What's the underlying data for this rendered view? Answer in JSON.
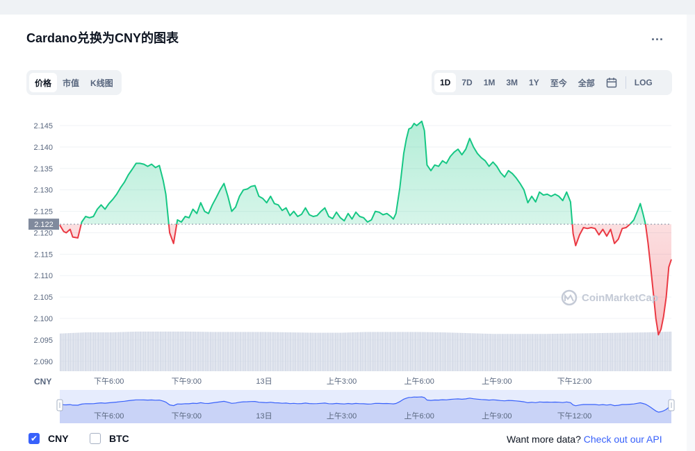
{
  "title": "Cardano兑换为CNY的图表",
  "more_label": "...",
  "tabs_left": [
    "价格",
    "市值",
    "K线图"
  ],
  "tabs_left_active": 0,
  "tabs_right": [
    "1D",
    "7D",
    "1M",
    "3M",
    "1Y",
    "至今",
    "全部"
  ],
  "tabs_right_active": 0,
  "calendar_icon": "calendar-icon",
  "log_label": "LOG",
  "legend": [
    {
      "label": "CNY",
      "checked": true
    },
    {
      "label": "BTC",
      "checked": false
    }
  ],
  "api_prompt": "Want more data?",
  "api_link": "Check out our API",
  "watermark": "CoinMarketCap",
  "colors": {
    "up": "#16c784",
    "down": "#ea3943",
    "accent": "#3861fb",
    "volume": "#cfd6e4",
    "navigator": "#3861fb"
  },
  "chart_data": {
    "type": "area",
    "currency_label": "CNY",
    "y_ticks": [
      "2.145",
      "2.140",
      "2.135",
      "2.130",
      "2.125",
      "2.120",
      "2.115",
      "2.110",
      "2.105",
      "2.100",
      "2.095",
      "2.090"
    ],
    "ylim": [
      2.0877,
      2.1484
    ],
    "baseline": 2.122,
    "baseline_label": "2.122",
    "x_tick_labels": [
      "下午6:00",
      "下午9:00",
      "13日",
      "上午3:00",
      "上午6:00",
      "上午9:00",
      "下午12:00"
    ],
    "x_range_hours": [
      0,
      23.65
    ],
    "x_tick_hours": [
      1.9,
      4.9,
      7.9,
      10.9,
      13.9,
      16.9,
      19.9
    ],
    "points": [
      [
        0.0,
        2.1218
      ],
      [
        0.15,
        2.1203
      ],
      [
        0.25,
        2.12
      ],
      [
        0.4,
        2.1208
      ],
      [
        0.5,
        2.119
      ],
      [
        0.7,
        2.1188
      ],
      [
        0.85,
        2.1225
      ],
      [
        1.0,
        2.1238
      ],
      [
        1.15,
        2.1235
      ],
      [
        1.3,
        2.1238
      ],
      [
        1.45,
        2.1255
      ],
      [
        1.6,
        2.1265
      ],
      [
        1.75,
        2.1255
      ],
      [
        1.9,
        2.1268
      ],
      [
        2.05,
        2.1278
      ],
      [
        2.2,
        2.129
      ],
      [
        2.35,
        2.1305
      ],
      [
        2.5,
        2.1318
      ],
      [
        2.65,
        2.1335
      ],
      [
        2.8,
        2.1348
      ],
      [
        2.95,
        2.1362
      ],
      [
        3.1,
        2.1362
      ],
      [
        3.25,
        2.136
      ],
      [
        3.4,
        2.1355
      ],
      [
        3.55,
        2.136
      ],
      [
        3.7,
        2.1352
      ],
      [
        3.85,
        2.1357
      ],
      [
        4.0,
        2.1322
      ],
      [
        4.1,
        2.129
      ],
      [
        4.25,
        2.12
      ],
      [
        4.4,
        2.1175
      ],
      [
        4.55,
        2.123
      ],
      [
        4.7,
        2.1225
      ],
      [
        4.85,
        2.1238
      ],
      [
        5.0,
        2.1235
      ],
      [
        5.15,
        2.1255
      ],
      [
        5.3,
        2.1245
      ],
      [
        5.45,
        2.127
      ],
      [
        5.6,
        2.125
      ],
      [
        5.75,
        2.1245
      ],
      [
        5.9,
        2.1265
      ],
      [
        6.05,
        2.1282
      ],
      [
        6.2,
        2.13
      ],
      [
        6.35,
        2.1315
      ],
      [
        6.5,
        2.1285
      ],
      [
        6.65,
        2.125
      ],
      [
        6.8,
        2.126
      ],
      [
        6.95,
        2.1285
      ],
      [
        7.1,
        2.13
      ],
      [
        7.25,
        2.1302
      ],
      [
        7.4,
        2.1308
      ],
      [
        7.55,
        2.131
      ],
      [
        7.7,
        2.1285
      ],
      [
        7.85,
        2.128
      ],
      [
        8.0,
        2.127
      ],
      [
        8.15,
        2.1285
      ],
      [
        8.3,
        2.1268
      ],
      [
        8.45,
        2.1265
      ],
      [
        8.6,
        2.1252
      ],
      [
        8.75,
        2.1258
      ],
      [
        8.9,
        2.124
      ],
      [
        9.05,
        2.125
      ],
      [
        9.2,
        2.1238
      ],
      [
        9.35,
        2.1243
      ],
      [
        9.5,
        2.1258
      ],
      [
        9.65,
        2.1242
      ],
      [
        9.8,
        2.1238
      ],
      [
        9.95,
        2.124
      ],
      [
        10.1,
        2.125
      ],
      [
        10.25,
        2.1258
      ],
      [
        10.4,
        2.1238
      ],
      [
        10.55,
        2.1233
      ],
      [
        10.7,
        2.1248
      ],
      [
        10.85,
        2.1235
      ],
      [
        11.0,
        2.1228
      ],
      [
        11.15,
        2.1245
      ],
      [
        11.3,
        2.1232
      ],
      [
        11.45,
        2.1248
      ],
      [
        11.6,
        2.1238
      ],
      [
        11.75,
        2.1235
      ],
      [
        11.9,
        2.1225
      ],
      [
        12.05,
        2.123
      ],
      [
        12.2,
        2.125
      ],
      [
        12.35,
        2.1248
      ],
      [
        12.5,
        2.1242
      ],
      [
        12.65,
        2.1245
      ],
      [
        12.8,
        2.1238
      ],
      [
        12.9,
        2.1232
      ],
      [
        13.0,
        2.1245
      ],
      [
        13.15,
        2.1305
      ],
      [
        13.3,
        2.1385
      ],
      [
        13.4,
        2.1418
      ],
      [
        13.5,
        2.1442
      ],
      [
        13.6,
        2.1445
      ],
      [
        13.7,
        2.1455
      ],
      [
        13.8,
        2.145
      ],
      [
        13.9,
        2.1455
      ],
      [
        14.0,
        2.146
      ],
      [
        14.1,
        2.1438
      ],
      [
        14.2,
        2.1358
      ],
      [
        14.35,
        2.1345
      ],
      [
        14.5,
        2.1358
      ],
      [
        14.65,
        2.1355
      ],
      [
        14.8,
        2.1368
      ],
      [
        14.95,
        2.1362
      ],
      [
        15.1,
        2.1378
      ],
      [
        15.25,
        2.1388
      ],
      [
        15.4,
        2.1395
      ],
      [
        15.55,
        2.1382
      ],
      [
        15.7,
        2.1395
      ],
      [
        15.85,
        2.142
      ],
      [
        16.0,
        2.14
      ],
      [
        16.15,
        2.1385
      ],
      [
        16.3,
        2.1375
      ],
      [
        16.45,
        2.1368
      ],
      [
        16.6,
        2.1355
      ],
      [
        16.75,
        2.1365
      ],
      [
        16.9,
        2.1355
      ],
      [
        17.05,
        2.134
      ],
      [
        17.2,
        2.133
      ],
      [
        17.35,
        2.1345
      ],
      [
        17.5,
        2.1338
      ],
      [
        17.65,
        2.1328
      ],
      [
        17.8,
        2.1315
      ],
      [
        17.95,
        2.13
      ],
      [
        18.1,
        2.127
      ],
      [
        18.25,
        2.1285
      ],
      [
        18.4,
        2.1272
      ],
      [
        18.55,
        2.1295
      ],
      [
        18.7,
        2.1288
      ],
      [
        18.85,
        2.129
      ],
      [
        19.0,
        2.1285
      ],
      [
        19.15,
        2.129
      ],
      [
        19.3,
        2.1285
      ],
      [
        19.45,
        2.1275
      ],
      [
        19.6,
        2.1295
      ],
      [
        19.75,
        2.1272
      ],
      [
        19.85,
        2.1198
      ],
      [
        19.95,
        2.117
      ],
      [
        20.1,
        2.1195
      ],
      [
        20.25,
        2.1212
      ],
      [
        20.4,
        2.121
      ],
      [
        20.55,
        2.1212
      ],
      [
        20.7,
        2.121
      ],
      [
        20.85,
        2.1195
      ],
      [
        21.0,
        2.1208
      ],
      [
        21.15,
        2.1192
      ],
      [
        21.3,
        2.1208
      ],
      [
        21.45,
        2.1175
      ],
      [
        21.6,
        2.1185
      ],
      [
        21.75,
        2.121
      ],
      [
        21.9,
        2.1212
      ],
      [
        22.05,
        2.122
      ],
      [
        22.2,
        2.123
      ],
      [
        22.35,
        2.1252
      ],
      [
        22.45,
        2.1268
      ],
      [
        22.55,
        2.1245
      ],
      [
        22.65,
        2.122
      ],
      [
        22.75,
        2.1175
      ],
      [
        22.85,
        2.112
      ],
      [
        22.95,
        2.106
      ],
      [
        23.05,
        2.1
      ],
      [
        23.15,
        2.0962
      ],
      [
        23.25,
        2.0975
      ],
      [
        23.35,
        2.1005
      ],
      [
        23.45,
        2.105
      ],
      [
        23.55,
        2.112
      ],
      [
        23.65,
        2.1138
      ]
    ],
    "volume_level": [
      0.25,
      0.28,
      0.28,
      0.3,
      0.3,
      0.3,
      0.29,
      0.29,
      0.29,
      0.28,
      0.27,
      0.27,
      0.29,
      0.29,
      0.29,
      0.28,
      0.26,
      0.24,
      0.24,
      0.24,
      0.25,
      0.26,
      0.27,
      0.28,
      0.3
    ]
  }
}
